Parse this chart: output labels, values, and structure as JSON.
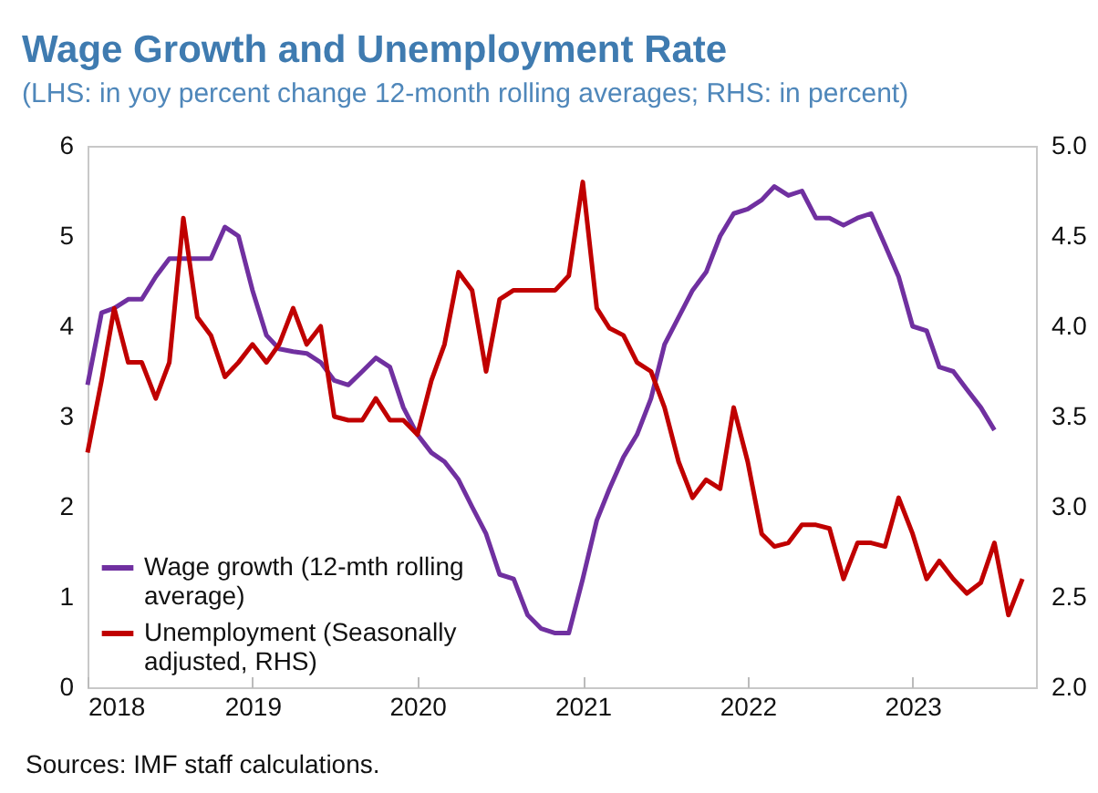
{
  "chart_data": {
    "type": "line",
    "title": "Wage Growth and Unemployment Rate",
    "subtitle": "(LHS: in yoy percent change 12-month rolling averages; RHS: in percent)",
    "annotations": [
      "Sources: IMF staff calculations."
    ],
    "x": [
      "2018-01",
      "2018-02",
      "2018-03",
      "2018-04",
      "2018-05",
      "2018-06",
      "2018-07",
      "2018-08",
      "2018-09",
      "2018-10",
      "2018-11",
      "2018-12",
      "2019-01",
      "2019-02",
      "2019-03",
      "2019-04",
      "2019-05",
      "2019-06",
      "2019-07",
      "2019-08",
      "2019-09",
      "2019-10",
      "2019-11",
      "2019-12",
      "2020-01",
      "2020-02",
      "2020-03",
      "2020-04",
      "2020-05",
      "2020-06",
      "2020-07",
      "2020-08",
      "2020-09",
      "2020-10",
      "2020-11",
      "2020-12",
      "2021-01",
      "2021-02",
      "2021-03",
      "2021-04",
      "2021-05",
      "2021-06",
      "2021-07",
      "2021-08",
      "2021-09",
      "2021-10",
      "2021-11",
      "2021-12",
      "2022-01",
      "2022-02",
      "2022-03",
      "2022-04",
      "2022-05",
      "2022-06",
      "2022-07",
      "2022-08",
      "2022-09",
      "2022-10",
      "2022-11",
      "2022-12",
      "2023-01",
      "2023-02",
      "2023-03",
      "2023-04",
      "2023-05",
      "2023-06",
      "2023-07",
      "2023-08",
      "2023-09"
    ],
    "series": [
      {
        "name": "Wage growth (12-mth rolling average)",
        "color": "#7030a0",
        "values": [
          3.35,
          4.15,
          4.2,
          4.3,
          4.3,
          4.55,
          4.75,
          4.75,
          4.75,
          4.75,
          5.1,
          5.0,
          4.4,
          3.9,
          3.75,
          3.72,
          3.7,
          3.6,
          3.4,
          3.35,
          3.5,
          3.65,
          3.55,
          3.1,
          2.8,
          2.6,
          2.5,
          2.3,
          2.0,
          1.7,
          1.25,
          1.2,
          0.8,
          0.65,
          0.6,
          0.6,
          1.2,
          1.85,
          2.2,
          2.55,
          2.8,
          3.2,
          3.8,
          4.1,
          4.4,
          4.6,
          5.0,
          5.25,
          5.3,
          5.4,
          5.55,
          5.45,
          5.5,
          5.2,
          5.2,
          5.12,
          5.2,
          5.25,
          4.9,
          4.55,
          4.0,
          3.95,
          3.55,
          3.5,
          3.3,
          3.1,
          2.85,
          null,
          null
        ]
      },
      {
        "name": "Unemployment (Seasonally adjusted, RHS)",
        "color": "#c00000",
        "axis": "y2",
        "values": [
          3.3,
          3.7,
          4.1,
          3.8,
          3.8,
          3.6,
          3.8,
          4.6,
          4.05,
          3.95,
          3.72,
          3.8,
          3.9,
          3.8,
          3.9,
          4.1,
          3.9,
          4.0,
          3.5,
          3.48,
          3.48,
          3.6,
          3.48,
          3.48,
          3.4,
          3.7,
          3.9,
          4.3,
          4.2,
          3.75,
          4.15,
          4.2,
          4.2,
          4.2,
          4.2,
          4.28,
          4.8,
          4.1,
          3.99,
          3.95,
          3.8,
          3.75,
          3.55,
          3.25,
          3.05,
          3.15,
          3.1,
          3.55,
          3.25,
          2.85,
          2.78,
          2.8,
          2.9,
          2.9,
          2.88,
          2.6,
          2.8,
          2.8,
          2.78,
          3.05,
          2.85,
          2.6,
          2.7,
          2.6,
          2.52,
          2.58,
          2.8,
          2.4,
          2.6
        ]
      }
    ],
    "xlim": [
      "2018-01",
      "2023-10"
    ],
    "xticks": [
      "2018",
      "2019",
      "2020",
      "2021",
      "2022",
      "2023"
    ],
    "ylim": [
      0,
      6
    ],
    "yticks": [
      0,
      1,
      2,
      3,
      4,
      5,
      6
    ],
    "y2lim": [
      2,
      5
    ],
    "y2ticks": [
      {
        "value": 2,
        "label": "2.0"
      },
      {
        "value": 2.5,
        "label": "2.5"
      },
      {
        "value": 3,
        "label": "3.0"
      },
      {
        "value": 3.5,
        "label": "3.5"
      },
      {
        "value": 4,
        "label": "4.0"
      },
      {
        "value": 4.5,
        "label": "4.5"
      },
      {
        "value": 5,
        "label": "5.0"
      }
    ],
    "legend": "bottom left"
  }
}
